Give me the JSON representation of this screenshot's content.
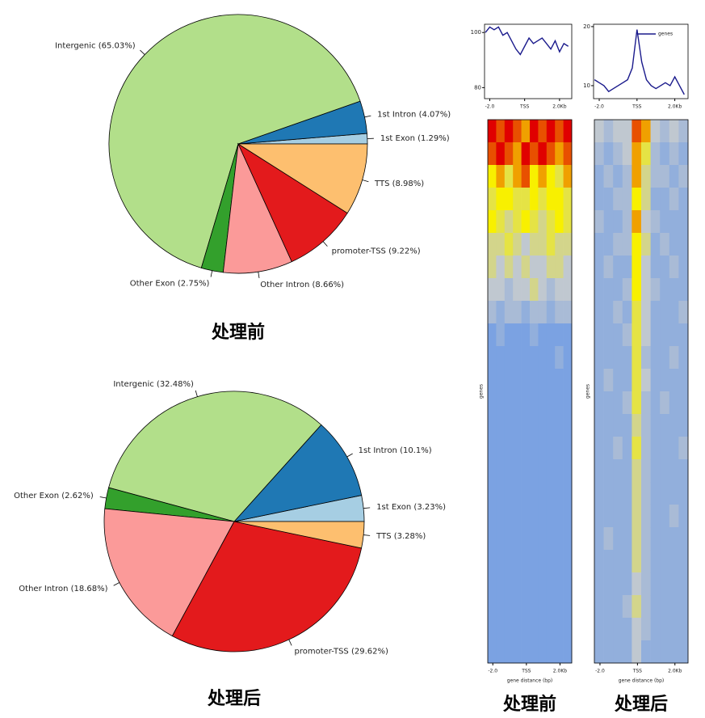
{
  "chart_data": [
    {
      "type": "pie",
      "caption": "处理前",
      "values": [
        1.29,
        4.07,
        65.03,
        2.75,
        8.66,
        9.22,
        8.98
      ],
      "value_labels": [
        "1st Exon (1.29%)",
        "1st Intron (4.07%)",
        "Intergenic (65.03%)",
        "Other Exon (2.75%)",
        "Other Intron (8.66%)",
        "promoter-TSS (9.22%)",
        "TTS (8.98%)"
      ],
      "colors": [
        "#a6cee3",
        "#1f78b4",
        "#b2df8a",
        "#33a02c",
        "#fb9a99",
        "#e31a1c",
        "#fdbf6f"
      ]
    },
    {
      "type": "pie",
      "caption": "处理后",
      "values": [
        3.23,
        10.1,
        32.48,
        2.62,
        18.68,
        29.62,
        3.28
      ],
      "value_labels": [
        "1st Exon (3.23%)",
        "1st Intron (10.1%)",
        "Intergenic (32.48%)",
        "Other Exon (2.62%)",
        "Other Intron (18.68%)",
        "promoter-TSS (29.62%)",
        "TTS (3.28%)"
      ],
      "colors": [
        "#a6cee3",
        "#1f78b4",
        "#b2df8a",
        "#33a02c",
        "#fb9a99",
        "#e31a1c",
        "#fdbf6f"
      ]
    },
    {
      "type": "line",
      "x": [
        -2.25,
        -2,
        -1.75,
        -1.5,
        -1.25,
        -1,
        -0.75,
        -0.5,
        -0.25,
        0,
        0.25,
        0.5,
        0.75,
        1,
        1.25,
        1.5,
        1.75,
        2,
        2.25,
        2.5
      ],
      "values": [
        100,
        102,
        101,
        102,
        99,
        100,
        97,
        94,
        92,
        95,
        98,
        96,
        97,
        98,
        96,
        94,
        97,
        93,
        96,
        95
      ],
      "color": "#1a1a8c",
      "xlim": [
        -2.3,
        2.7
      ],
      "ylim": [
        76,
        103
      ],
      "xticks": [
        {
          "value": -2,
          "label": "-2.0"
        },
        {
          "value": 0,
          "label": "TSS"
        },
        {
          "value": 2,
          "label": "2.0Kb"
        }
      ],
      "yticks": [
        80,
        100
      ]
    },
    {
      "type": "line",
      "x": [
        -2.25,
        -2,
        -1.75,
        -1.5,
        -1.25,
        -1,
        -0.75,
        -0.5,
        -0.25,
        0,
        0.25,
        0.5,
        0.75,
        1,
        1.25,
        1.5,
        1.75,
        2,
        2.25,
        2.5
      ],
      "series": [
        {
          "name": "genes",
          "color": "#1a1a8c",
          "values": [
            11,
            10.5,
            10,
            9,
            9.5,
            10,
            10.5,
            11,
            13,
            19.5,
            14,
            11,
            10,
            9.5,
            10,
            10.5,
            10,
            11.5,
            10,
            8.5
          ]
        }
      ],
      "legend": "upper right",
      "xlim": [
        -2.3,
        2.7
      ],
      "ylim": [
        7.8,
        20.4
      ],
      "xticks": [
        {
          "value": -2,
          "label": "-2.0"
        },
        {
          "value": 0,
          "label": "TSS"
        },
        {
          "value": 2,
          "label": "2.0Kb"
        }
      ],
      "yticks": [
        10,
        20
      ]
    },
    {
      "type": "heatmap",
      "caption": "处理前",
      "xlabel": "gene distance (bp)",
      "ylabel": "genes",
      "xlim": [
        -2.3,
        2.7
      ],
      "xticks": [
        {
          "value": -2,
          "label": "-2.0"
        },
        {
          "value": 0,
          "label": "TSS"
        },
        {
          "value": 2,
          "label": "2.0Kb"
        }
      ],
      "z": [
        [
          10,
          9,
          10,
          9,
          8,
          10,
          9,
          10,
          9,
          10
        ],
        [
          9,
          10,
          9,
          8,
          10,
          9,
          10,
          9,
          8,
          9
        ],
        [
          7,
          8,
          6,
          8,
          9,
          7,
          8,
          7,
          6,
          8
        ],
        [
          6,
          7,
          7,
          6,
          6,
          7,
          6,
          7,
          7,
          6
        ],
        [
          7,
          6,
          5,
          6,
          7,
          6,
          5,
          6,
          7,
          6
        ],
        [
          5,
          5,
          6,
          5,
          4,
          5,
          5,
          6,
          5,
          5
        ],
        [
          5,
          4,
          5,
          4,
          5,
          4,
          4,
          5,
          5,
          4
        ],
        [
          4,
          4,
          3,
          4,
          4,
          5,
          4,
          3,
          4,
          4
        ],
        [
          3,
          2,
          3,
          3,
          2,
          3,
          3,
          2,
          3,
          3
        ],
        [
          1,
          2,
          1,
          1,
          1,
          2,
          1,
          1,
          1,
          1
        ],
        [
          1,
          1,
          1,
          1,
          1,
          1,
          1,
          1,
          2,
          1
        ],
        [
          1,
          1,
          1,
          1,
          1,
          1,
          1,
          1,
          1,
          1
        ],
        [
          1,
          1,
          1,
          1,
          1,
          1,
          1,
          1,
          1,
          1
        ],
        [
          1,
          1,
          1,
          1,
          1,
          1,
          1,
          1,
          1,
          1
        ],
        [
          1,
          1,
          1,
          1,
          1,
          1,
          1,
          1,
          1,
          1
        ],
        [
          1,
          1,
          1,
          1,
          1,
          1,
          1,
          1,
          1,
          1
        ],
        [
          1,
          1,
          1,
          1,
          1,
          1,
          1,
          1,
          1,
          1
        ],
        [
          1,
          1,
          1,
          1,
          1,
          1,
          1,
          1,
          1,
          1
        ],
        [
          1,
          1,
          1,
          1,
          1,
          1,
          1,
          1,
          1,
          1
        ],
        [
          1,
          1,
          1,
          1,
          1,
          1,
          1,
          1,
          1,
          1
        ],
        [
          1,
          1,
          1,
          1,
          1,
          1,
          1,
          1,
          1,
          1
        ],
        [
          1,
          1,
          1,
          1,
          1,
          1,
          1,
          1,
          1,
          1
        ],
        [
          1,
          1,
          1,
          1,
          1,
          1,
          1,
          1,
          1,
          1
        ],
        [
          1,
          1,
          1,
          1,
          1,
          1,
          1,
          1,
          1,
          1
        ]
      ]
    },
    {
      "type": "heatmap",
      "caption": "处理后",
      "xlabel": "gene distance (bp)",
      "ylabel": "genes",
      "xlim": [
        -2.3,
        2.7
      ],
      "xticks": [
        {
          "value": -2,
          "label": "-2.0"
        },
        {
          "value": 0,
          "label": "TSS"
        },
        {
          "value": 2,
          "label": "2.0Kb"
        }
      ],
      "z": [
        [
          4,
          3,
          4,
          4,
          9,
          8,
          4,
          3,
          4,
          3
        ],
        [
          3,
          2,
          3,
          4,
          8,
          6,
          3,
          2,
          3,
          2
        ],
        [
          2,
          3,
          2,
          3,
          8,
          5,
          3,
          3,
          2,
          3
        ],
        [
          2,
          2,
          3,
          3,
          7,
          5,
          2,
          2,
          3,
          2
        ],
        [
          3,
          2,
          2,
          3,
          8,
          4,
          3,
          2,
          2,
          2
        ],
        [
          2,
          2,
          3,
          3,
          7,
          5,
          2,
          3,
          2,
          2
        ],
        [
          2,
          3,
          2,
          2,
          7,
          4,
          2,
          2,
          3,
          2
        ],
        [
          2,
          2,
          2,
          3,
          7,
          4,
          3,
          2,
          2,
          2
        ],
        [
          2,
          2,
          3,
          2,
          6,
          4,
          2,
          2,
          2,
          3
        ],
        [
          2,
          2,
          2,
          3,
          6,
          4,
          2,
          2,
          2,
          2
        ],
        [
          2,
          2,
          2,
          2,
          6,
          3,
          2,
          2,
          3,
          2
        ],
        [
          2,
          3,
          2,
          2,
          6,
          4,
          2,
          2,
          2,
          2
        ],
        [
          2,
          2,
          2,
          3,
          6,
          3,
          2,
          3,
          2,
          2
        ],
        [
          2,
          2,
          2,
          2,
          5,
          3,
          2,
          2,
          2,
          2
        ],
        [
          2,
          2,
          3,
          2,
          6,
          3,
          2,
          2,
          2,
          3
        ],
        [
          2,
          2,
          2,
          2,
          5,
          3,
          2,
          2,
          2,
          2
        ],
        [
          2,
          2,
          2,
          2,
          5,
          3,
          2,
          2,
          2,
          2
        ],
        [
          2,
          2,
          2,
          2,
          5,
          3,
          2,
          2,
          3,
          2
        ],
        [
          2,
          3,
          2,
          2,
          5,
          3,
          2,
          2,
          2,
          2
        ],
        [
          2,
          2,
          2,
          2,
          5,
          3,
          2,
          2,
          2,
          2
        ],
        [
          2,
          2,
          2,
          2,
          4,
          3,
          2,
          2,
          2,
          2
        ],
        [
          2,
          2,
          2,
          3,
          5,
          3,
          2,
          2,
          2,
          2
        ],
        [
          2,
          2,
          2,
          2,
          4,
          3,
          2,
          2,
          2,
          2
        ],
        [
          2,
          2,
          2,
          2,
          4,
          2,
          2,
          2,
          2,
          2
        ]
      ]
    }
  ]
}
